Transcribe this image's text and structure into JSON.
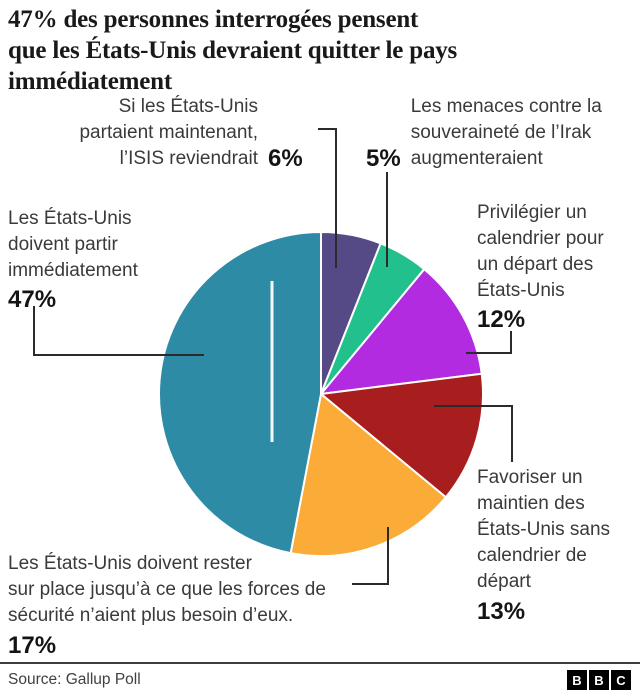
{
  "header": {
    "lines": [
      "47% des personnes interrogées pensent",
      "que les États-Unis devraient quitter le pays",
      "immédiatement"
    ]
  },
  "chart_data": {
    "type": "pie",
    "title": "47% des personnes interrogées pensent que les États-Unis devraient quitter le pays immédiatement",
    "direction": "clockwise",
    "start_angle_deg": 0,
    "slices": [
      {
        "label": "Si les États-Unis partaient maintenant, l’ISIS reviendrait",
        "value": 6,
        "pct_label": "6%",
        "color": "#554a85"
      },
      {
        "label": "Les menaces contre la souveraineté de l’Irak augmenteraient",
        "value": 5,
        "pct_label": "5%",
        "color": "#22c08d"
      },
      {
        "label": "Privilégier un calendrier pour un départ des États-Unis",
        "value": 12,
        "pct_label": "12%",
        "color": "#b22be1"
      },
      {
        "label": "Favoriser un maintien des États-Unis sans calendrier de départ",
        "value": 13,
        "pct_label": "13%",
        "color": "#a81d1d"
      },
      {
        "label": "Les États-Unis doivent rester sur place jusqu’à ce que les forces de sécurité n’aient plus besoin d’eux.",
        "value": 17,
        "pct_label": "17%",
        "color": "#fbab37"
      },
      {
        "label": "Les États-Unis doivent partir immédiatement",
        "value": 47,
        "pct_label": "47%",
        "color": "#2d8ba6"
      }
    ]
  },
  "labels": {
    "isis": {
      "lines": [
        "Si les États-Unis",
        "partaient maintenant,",
        "l’ISIS reviendrait"
      ],
      "pct": "6%"
    },
    "menaces": {
      "lines": [
        "Les menaces contre la",
        "souveraineté de l’Irak",
        "augmenteraient"
      ],
      "pct": "5%"
    },
    "partir": {
      "lines": [
        "Les États-Unis",
        "doivent partir",
        "immédiatement"
      ],
      "pct": "47%"
    },
    "calendrier": {
      "lines": [
        "Privilégier un",
        "calendrier pour",
        "un départ des",
        "États-Unis"
      ],
      "pct": "12%"
    },
    "maintien": {
      "lines": [
        "Favoriser un",
        "maintien des",
        "États-Unis sans",
        "calendrier de",
        "départ"
      ],
      "pct": "13%"
    },
    "rester": {
      "lines": [
        "Les États-Unis doivent rester",
        "sur place jusqu’à ce que les forces de",
        "sécurité n’aient plus besoin d’eux."
      ],
      "pct": "17%"
    }
  },
  "footer": {
    "source": "Source: Gallup Poll",
    "bbc": [
      "B",
      "B",
      "C"
    ]
  },
  "colors": {
    "callout_line": "#2b2b2b",
    "emphasis_line": "#ffffff",
    "title_text": "#191919",
    "label_text": "#3a3a3a"
  }
}
